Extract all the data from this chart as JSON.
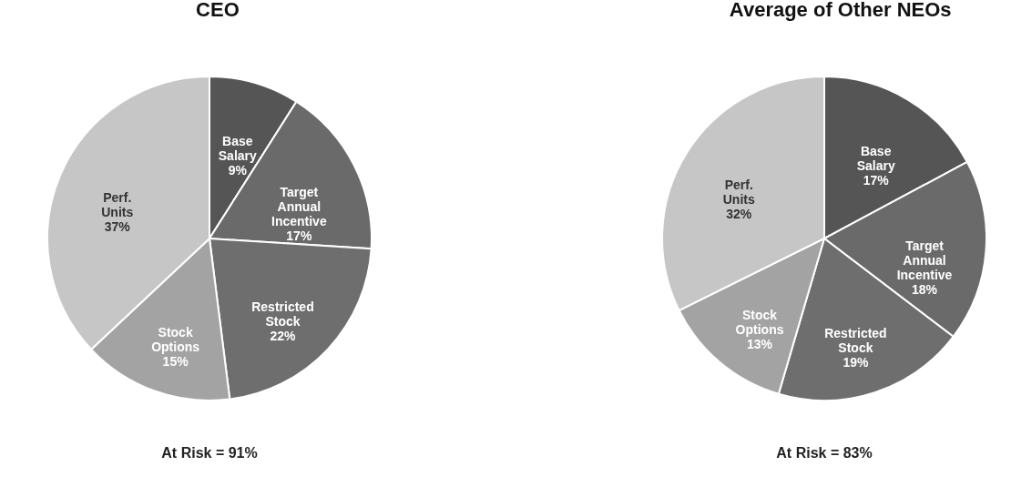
{
  "chart_data": [
    {
      "type": "pie",
      "title": "CEO",
      "categories": [
        "Base Salary",
        "Target Annual Incentive",
        "Restricted Stock",
        "Stock Options",
        "Perf. Units"
      ],
      "values": [
        9,
        17,
        22,
        15,
        37
      ],
      "value_labels": [
        "9%",
        "17%",
        "22%",
        "15%",
        "37%"
      ],
      "colors": [
        "#555555",
        "#6a6a6a",
        "#6e6e6e",
        "#a3a3a3",
        "#c6c6c6"
      ],
      "annotations": [
        "At Risk = 91%"
      ]
    },
    {
      "type": "pie",
      "title": "Average of Other NEOs",
      "categories": [
        "Base Salary",
        "Target Annual Incentive",
        "Restricted Stock",
        "Stock Options",
        "Perf. Units"
      ],
      "values": [
        17,
        18,
        19,
        13,
        32
      ],
      "value_labels": [
        "17%",
        "18%",
        "19%",
        "13%",
        "32%"
      ],
      "colors": [
        "#555555",
        "#6a6a6a",
        "#6e6e6e",
        "#a3a3a3",
        "#c6c6c6"
      ],
      "annotations": [
        "At Risk = 83%"
      ]
    }
  ]
}
